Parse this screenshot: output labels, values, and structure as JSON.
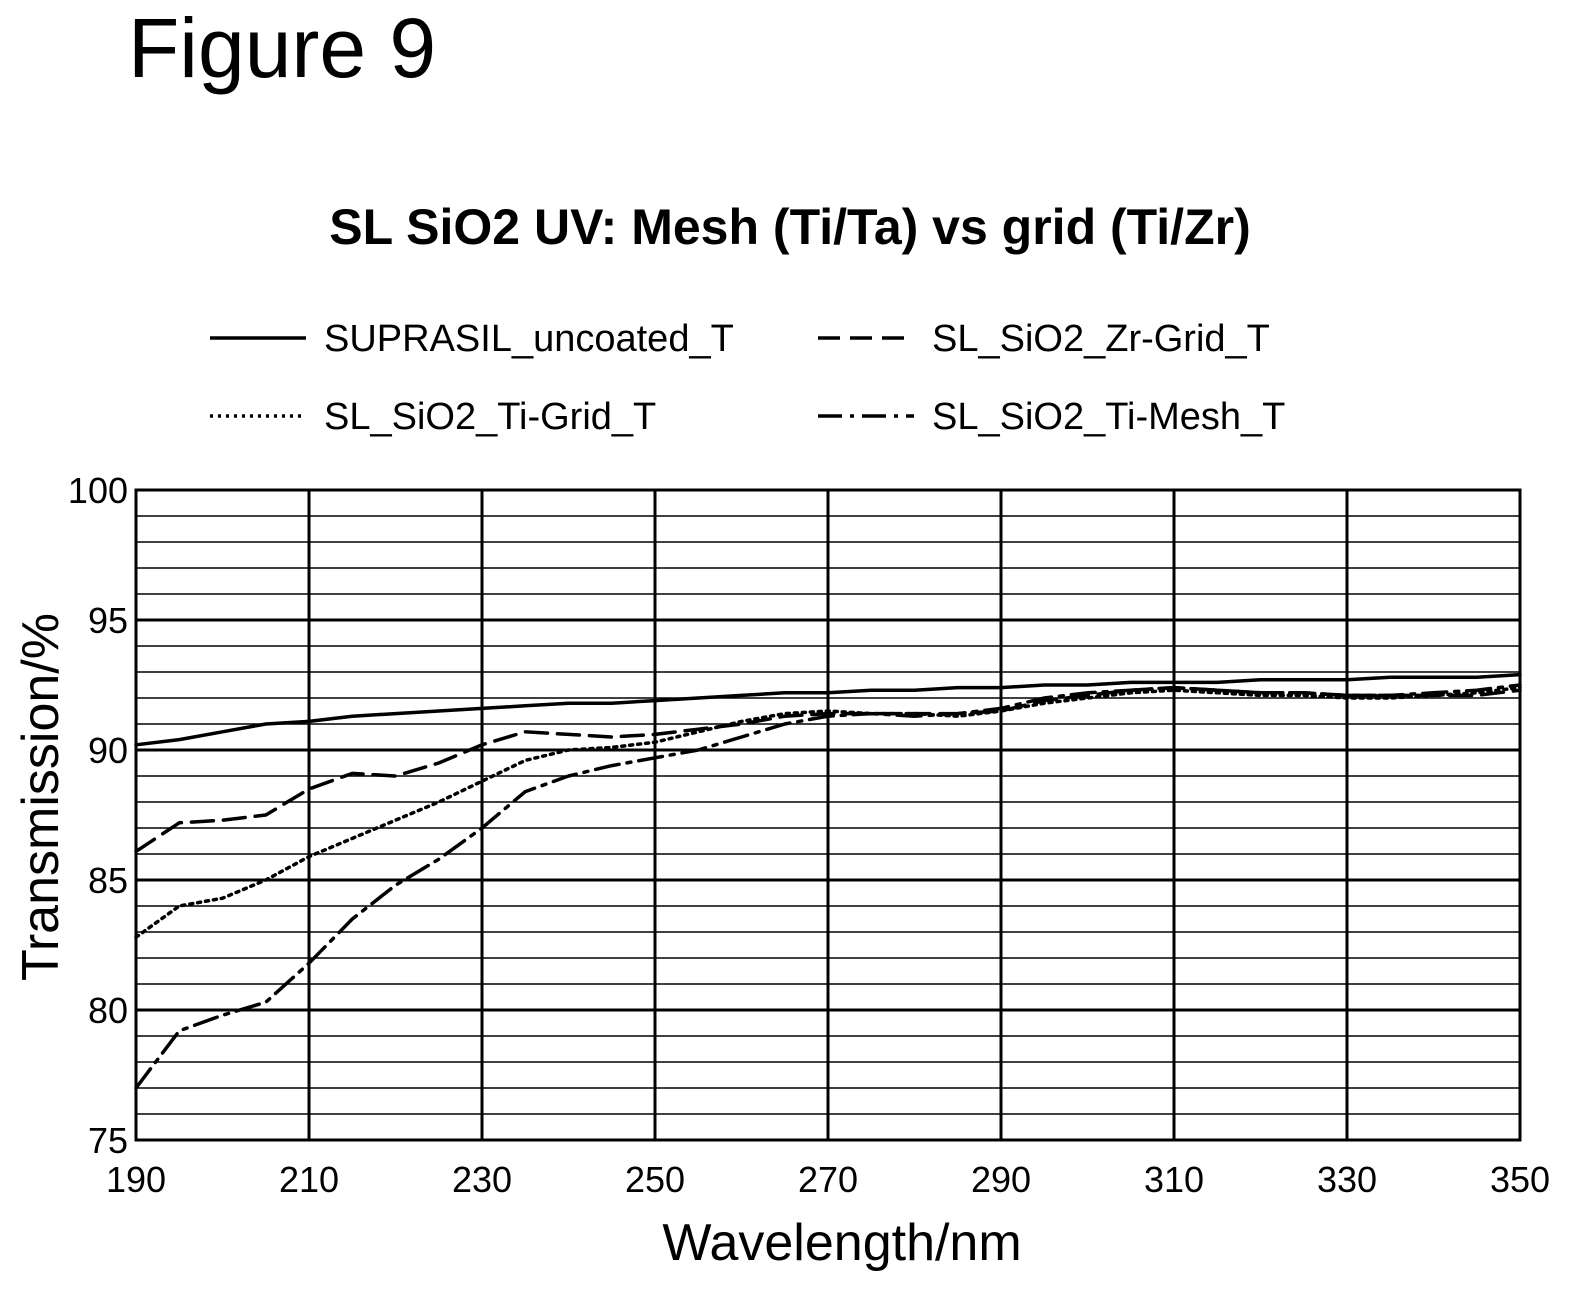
{
  "figure_label": "Figure 9",
  "chart_data": {
    "type": "line",
    "title": "SL SiO2 UV: Mesh (Ti/Ta) vs grid (Ti/Zr)",
    "xlabel": "Wavelength/nm",
    "ylabel": "Transmission/%",
    "xlim": [
      190,
      350
    ],
    "ylim": [
      75,
      100
    ],
    "x_ticks": [
      190,
      210,
      230,
      250,
      270,
      290,
      310,
      330,
      350
    ],
    "y_ticks": [
      75,
      80,
      85,
      90,
      95,
      100
    ],
    "y_minor_step": 1,
    "grid": true,
    "legend_position": "top",
    "series": [
      {
        "name": "SUPRASIL_uncoated_T",
        "style": "solid",
        "x": [
          190,
          195,
          200,
          205,
          210,
          215,
          220,
          225,
          230,
          235,
          240,
          245,
          250,
          255,
          260,
          265,
          270,
          275,
          280,
          285,
          290,
          295,
          300,
          305,
          310,
          315,
          320,
          325,
          330,
          335,
          340,
          345,
          350
        ],
        "y": [
          90.2,
          90.4,
          90.7,
          91.0,
          91.1,
          91.3,
          91.4,
          91.5,
          91.6,
          91.7,
          91.8,
          91.8,
          91.9,
          92.0,
          92.1,
          92.2,
          92.2,
          92.3,
          92.3,
          92.4,
          92.4,
          92.5,
          92.5,
          92.6,
          92.6,
          92.6,
          92.7,
          92.7,
          92.7,
          92.8,
          92.8,
          92.8,
          92.9
        ]
      },
      {
        "name": "SL_SiO2_Zr-Grid_T",
        "style": "dashed",
        "x": [
          190,
          195,
          200,
          205,
          210,
          215,
          220,
          225,
          230,
          235,
          240,
          245,
          250,
          255,
          260,
          265,
          270,
          275,
          280,
          285,
          290,
          295,
          300,
          305,
          310,
          315,
          320,
          325,
          330,
          335,
          340,
          345,
          350
        ],
        "y": [
          86.1,
          87.2,
          87.3,
          87.5,
          88.5,
          89.1,
          89.0,
          89.5,
          90.2,
          90.7,
          90.6,
          90.5,
          90.6,
          90.8,
          91.0,
          91.3,
          91.4,
          91.4,
          91.4,
          91.4,
          91.5,
          91.9,
          92.1,
          92.3,
          92.4,
          92.3,
          92.2,
          92.2,
          92.1,
          92.1,
          92.1,
          92.1,
          92.3
        ]
      },
      {
        "name": "SL_SiO2_Ti-Grid_T",
        "style": "dotted",
        "x": [
          190,
          195,
          200,
          205,
          210,
          215,
          220,
          225,
          230,
          235,
          240,
          245,
          250,
          255,
          260,
          265,
          270,
          275,
          280,
          285,
          290,
          295,
          300,
          305,
          310,
          315,
          320,
          325,
          330,
          335,
          340,
          345,
          350
        ],
        "y": [
          82.8,
          84.0,
          84.3,
          85.0,
          85.9,
          86.6,
          87.3,
          88.0,
          88.8,
          89.6,
          90.0,
          90.1,
          90.3,
          90.7,
          91.1,
          91.4,
          91.5,
          91.4,
          91.4,
          91.3,
          91.5,
          91.8,
          92.0,
          92.2,
          92.3,
          92.2,
          92.1,
          92.1,
          92.0,
          92.0,
          92.1,
          92.2,
          92.4
        ]
      },
      {
        "name": "SL_SiO2_Ti-Mesh_T",
        "style": "dash-dot",
        "x": [
          190,
          195,
          200,
          205,
          210,
          215,
          220,
          225,
          230,
          235,
          240,
          245,
          250,
          255,
          260,
          265,
          270,
          275,
          280,
          285,
          290,
          295,
          300,
          305,
          310,
          315,
          320,
          325,
          330,
          335,
          340,
          345,
          350
        ],
        "y": [
          77.0,
          79.2,
          79.8,
          80.3,
          81.8,
          83.5,
          84.8,
          85.8,
          87.0,
          88.4,
          89.0,
          89.4,
          89.7,
          90.0,
          90.5,
          91.0,
          91.3,
          91.4,
          91.3,
          91.4,
          91.6,
          92.0,
          92.2,
          92.3,
          92.4,
          92.3,
          92.2,
          92.2,
          92.1,
          92.1,
          92.2,
          92.3,
          92.5
        ]
      }
    ]
  }
}
